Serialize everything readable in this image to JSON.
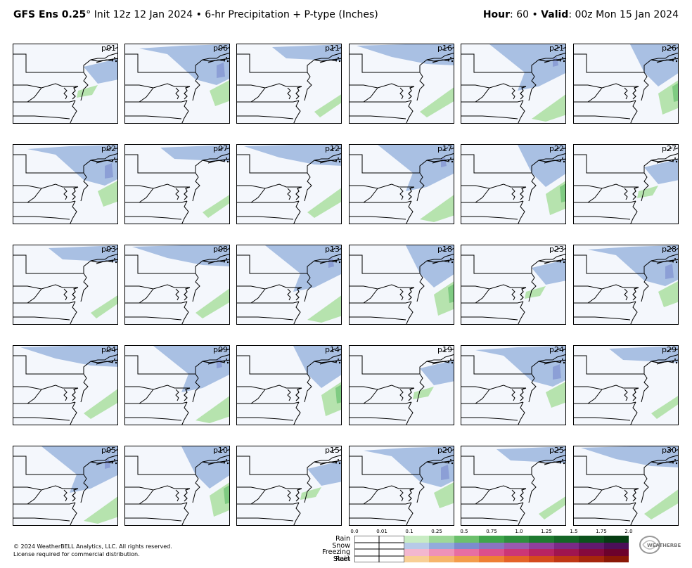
{
  "header": {
    "model": "GFS Ens 0.25",
    "degree": "°",
    "init": " Init 12z 12 Jan 2024",
    "product": " • 6-hr Precipitation + P-type (Inches)",
    "hour_label": "Hour",
    "hour_value": ": 60 • ",
    "valid_label": "Valid",
    "valid_value": ": 00z Mon 15 Jan 2024"
  },
  "panels": [
    "p01",
    "p06",
    "p11",
    "p16",
    "p21",
    "p26",
    "p02",
    "p07",
    "p12",
    "p17",
    "p22",
    "p27",
    "p03",
    "p08",
    "p13",
    "p18",
    "p23",
    "p28",
    "p04",
    "p09",
    "p14",
    "p19",
    "p24",
    "p29",
    "p05",
    "p10",
    "p15",
    "p20",
    "p25",
    "p30"
  ],
  "footer": {
    "line1": "© 2024 WeatherBELL Analytics, LLC. All rights reserved.",
    "line2": "License required for commercial distribution."
  },
  "legend": {
    "ticks": [
      "0.0",
      "0.01",
      "0.1",
      "0.25",
      "0.5",
      "0.75",
      "1.0",
      "1.25",
      "1.5",
      "1.75",
      "2.0"
    ],
    "rows": [
      {
        "label": "Rain",
        "colors": [
          "#ffffff",
          "#ffffff",
          "#c8ecc3",
          "#9ed898",
          "#6cc06c",
          "#3fa54b",
          "#2f8f3e",
          "#1f7a30",
          "#146626",
          "#0b521c",
          "#053c12"
        ]
      },
      {
        "label": "Snow",
        "colors": [
          "#ffffff",
          "#ffffff",
          "#b7cae8",
          "#93abdb",
          "#7c8ccd",
          "#8a74c0",
          "#9a5ab0",
          "#8f3f9c",
          "#7a2a86",
          "#611a6e",
          "#4b0f58"
        ]
      },
      {
        "label": "Freezing Rain",
        "colors": [
          "#ffffff",
          "#ffffff",
          "#f3b7cf",
          "#ee92b8",
          "#e76ea2",
          "#dc4f8c",
          "#cc3676",
          "#b82362",
          "#a0154f",
          "#86093d",
          "#6c022c"
        ]
      },
      {
        "label": "Sleet",
        "colors": [
          "#ffffff",
          "#ffffff",
          "#f8cf95",
          "#f6b56b",
          "#f39c4b",
          "#ee7f34",
          "#e46227",
          "#d44a1d",
          "#bf3714",
          "#a6260c",
          "#8a1806"
        ]
      }
    ]
  },
  "colors": {
    "snow": "#a9c0e3",
    "snow_dark": "#8c9fd6",
    "rain": "#b6e3ae",
    "rain_dark": "#7fcb82",
    "ocean": "#f4f7fc"
  }
}
